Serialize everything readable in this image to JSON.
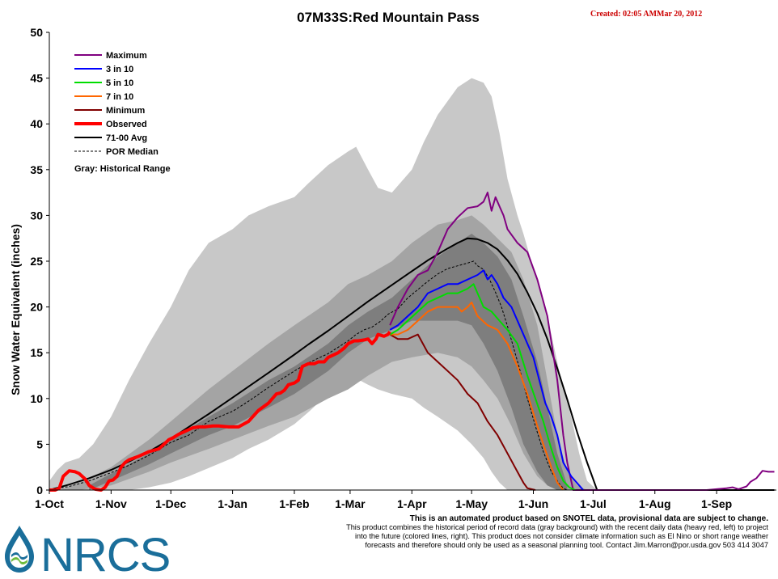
{
  "chart_data": {
    "type": "area",
    "title": "07M33S:Red Mountain Pass",
    "created_text": "Created: 02:05 AMMar 20, 2012",
    "ylabel": "Snow Water Equivalent (inches)",
    "xlabel": "",
    "ylim": [
      0,
      50
    ],
    "y_ticks": [
      "0",
      "5",
      "10",
      "15",
      "20",
      "25",
      "30",
      "35",
      "40",
      "45",
      "50"
    ],
    "x_ticks": [
      "1-Oct",
      "1-Nov",
      "1-Dec",
      "1-Jan",
      "1-Feb",
      "1-Mar",
      "1-Apr",
      "1-May",
      "1-Jun",
      "1-Jul",
      "1-Aug",
      "1-Sep"
    ],
    "x_unit": "day of water year (0 = 1-Oct)",
    "grid": false,
    "legend_position": "top-left",
    "legend": [
      {
        "label": "Maximum",
        "color": "#800080",
        "style": "solid"
      },
      {
        "label": "3 in 10",
        "color": "#0000ff",
        "style": "solid"
      },
      {
        "label": "5 in 10",
        "color": "#00dd00",
        "style": "solid"
      },
      {
        "label": "7 in 10",
        "color": "#ff6600",
        "style": "solid"
      },
      {
        "label": "Minimum",
        "color": "#800000",
        "style": "solid"
      },
      {
        "label": "Observed",
        "color": "#ff0000",
        "style": "thick"
      },
      {
        "label": "71-00 Avg",
        "color": "#000000",
        "style": "solid"
      },
      {
        "label": "POR Median",
        "color": "#000000",
        "style": "dashed"
      }
    ],
    "legend_note": "Gray: Historical Range",
    "colors": {
      "range_outer": "#c8c8c8",
      "range_mid": "#a4a4a4",
      "range_inner": "#7e7e7e"
    },
    "bands": {
      "outer": {
        "x": [
          0,
          4,
          8,
          15,
          22,
          31,
          40,
          50,
          61,
          70,
          80,
          92,
          100,
          110,
          123,
          130,
          140,
          150,
          154,
          160,
          165,
          172,
          182,
          188,
          195,
          205,
          212,
          218,
          222,
          226,
          230,
          235,
          238,
          242,
          246,
          252,
          256,
          262,
          266,
          270,
          275,
          280,
          285,
          290,
          295,
          300,
          350,
          364
        ],
        "upper": [
          1,
          2.2,
          3.0,
          3.5,
          5,
          8,
          12,
          16,
          20,
          24,
          27,
          28.5,
          30,
          31,
          32,
          33.5,
          35.5,
          37,
          37.5,
          35,
          33,
          32.5,
          35,
          38,
          41,
          44,
          45,
          44.5,
          43,
          39,
          34,
          30,
          28,
          25,
          22,
          17,
          13,
          8,
          4,
          1,
          0,
          0,
          0,
          0,
          0,
          0,
          0,
          0
        ],
        "lower": [
          0,
          0,
          0,
          0,
          0,
          0,
          0,
          0.3,
          0.8,
          1.5,
          2.4,
          3.5,
          4.5,
          5.5,
          7.2,
          8.5,
          10.5,
          12.0,
          12.2,
          11.5,
          11.0,
          10.5,
          10.0,
          9.0,
          8.0,
          6.5,
          5.0,
          3.5,
          2.0,
          0.8,
          0,
          0,
          0,
          0,
          0,
          0,
          0,
          0,
          0,
          0,
          0,
          0,
          0,
          0,
          0,
          0,
          0,
          0
        ]
      },
      "mid": {
        "x": [
          5,
          15,
          31,
          50,
          61,
          80,
          92,
          110,
          123,
          140,
          150,
          160,
          172,
          182,
          195,
          205,
          212,
          218,
          225,
          232,
          238,
          245,
          250,
          255,
          260,
          265,
          270
        ],
        "upper": [
          0,
          0.8,
          2.5,
          5.5,
          7.5,
          11,
          13,
          16,
          18,
          20.5,
          22.5,
          23.5,
          25,
          27,
          29,
          29.5,
          30,
          29,
          27.5,
          26,
          23,
          18,
          12,
          6,
          2,
          0.5,
          0
        ],
        "lower": [
          0,
          0,
          0.5,
          2,
          3,
          4.5,
          5.5,
          7,
          8,
          10,
          11,
          12.5,
          14,
          14.5,
          15,
          14.5,
          13.5,
          12,
          10,
          7,
          4,
          1.5,
          0.5,
          0,
          0,
          0,
          0
        ]
      },
      "inner": {
        "x": [
          20,
          31,
          50,
          61,
          80,
          92,
          110,
          123,
          140,
          150,
          160,
          172,
          182,
          195,
          205,
          212,
          218,
          225,
          232,
          238,
          245,
          250,
          255,
          260
        ],
        "upper": [
          0.5,
          1.8,
          4,
          5.5,
          8,
          9.5,
          12,
          13.5,
          16,
          18,
          19.5,
          21,
          23,
          25.5,
          27,
          28,
          27,
          25.5,
          23,
          19,
          14,
          9,
          4,
          0.5
        ],
        "lower": [
          0,
          1,
          2.8,
          4,
          6,
          7,
          9,
          10.5,
          13,
          15,
          16.5,
          17.5,
          18.5,
          18.5,
          18.5,
          18,
          16,
          13,
          9,
          5,
          2,
          0.5,
          0,
          0
        ]
      }
    },
    "series": [
      {
        "name": "71-00 Avg",
        "color": "#000000",
        "width": 2,
        "dash": "",
        "x": [
          0,
          10,
          20,
          31,
          40,
          50,
          61,
          70,
          80,
          92,
          100,
          110,
          123,
          130,
          140,
          150,
          160,
          170,
          180,
          190,
          200,
          205,
          210,
          215,
          220,
          225,
          230,
          235,
          240,
          245,
          250,
          255,
          260,
          265,
          270,
          273,
          275,
          300,
          364
        ],
        "y": [
          0,
          0.6,
          1.3,
          2.2,
          3.1,
          4.2,
          5.6,
          6.9,
          8.3,
          10.1,
          11.3,
          12.8,
          14.8,
          15.9,
          17.4,
          19.0,
          20.6,
          22.1,
          23.6,
          25.1,
          26.4,
          27.0,
          27.5,
          27.4,
          27.0,
          26.3,
          25.1,
          23.6,
          21.6,
          19.3,
          16.5,
          13.3,
          9.9,
          6.3,
          3.0,
          1.2,
          0,
          0,
          0
        ]
      },
      {
        "name": "POR Median",
        "color": "#000000",
        "width": 1,
        "dash": "3,2",
        "x": [
          0,
          10,
          20,
          31,
          40,
          50,
          61,
          70,
          80,
          92,
          100,
          110,
          123,
          130,
          140,
          150,
          154,
          158,
          162,
          166,
          170,
          175,
          180,
          185,
          190,
          195,
          200,
          205,
          210,
          213,
          215,
          218,
          221,
          224,
          227,
          230,
          233,
          236,
          240,
          244,
          248,
          252,
          256,
          258,
          260,
          300,
          364
        ],
        "y": [
          0,
          0.4,
          1.0,
          1.9,
          2.7,
          3.8,
          5.2,
          6.0,
          7.5,
          8.6,
          9.7,
          11.2,
          13.0,
          13.9,
          14.9,
          16.3,
          17.0,
          17.5,
          17.8,
          18.4,
          19.2,
          19.8,
          21.0,
          21.9,
          22.8,
          23.6,
          24.2,
          24.5,
          24.8,
          25.0,
          24.5,
          24.1,
          23.0,
          21.6,
          20.0,
          17.9,
          15.6,
          13.3,
          10.0,
          7.0,
          4.2,
          2.0,
          0.7,
          0.2,
          0,
          0,
          0
        ]
      },
      {
        "name": "Maximum",
        "color": "#800080",
        "width": 2,
        "dash": "",
        "x": [
          171,
          175,
          180,
          185,
          190,
          195,
          200,
          205,
          210,
          215,
          218,
          220,
          222,
          224,
          226,
          228,
          230,
          235,
          240,
          245,
          250,
          255,
          258,
          260,
          262,
          263,
          270,
          300,
          320,
          330,
          335,
          340,
          343,
          346,
          350,
          352,
          355,
          358,
          361,
          364
        ],
        "y": [
          18.0,
          20.0,
          22.0,
          23.5,
          24.0,
          26.0,
          28.5,
          29.8,
          30.8,
          31.0,
          31.5,
          32.5,
          30.5,
          32.0,
          31.0,
          30.0,
          28.5,
          27.0,
          26.0,
          23.0,
          19.0,
          12.0,
          6.0,
          3.0,
          1.0,
          0,
          0,
          0,
          0,
          0,
          0.1,
          0.2,
          0.3,
          0.1,
          0.4,
          0.9,
          1.3,
          2.1,
          2.0,
          2.0
        ]
      },
      {
        "name": "3 in 10",
        "color": "#0000ff",
        "width": 2,
        "dash": "",
        "x": [
          171,
          175,
          180,
          185,
          190,
          195,
          200,
          205,
          210,
          215,
          218,
          220,
          222,
          225,
          228,
          232,
          236,
          240,
          243,
          246,
          249,
          252,
          255,
          258,
          262,
          266,
          268
        ],
        "y": [
          17.5,
          18.0,
          19.0,
          20.0,
          21.5,
          22.0,
          22.5,
          22.5,
          23.0,
          23.5,
          24.0,
          23.0,
          23.5,
          22.5,
          21.0,
          20.0,
          18.0,
          16.0,
          14.5,
          12.0,
          9.5,
          8.0,
          6.0,
          3.0,
          1.5,
          0.5,
          0
        ]
      },
      {
        "name": "5 in 10",
        "color": "#00dd00",
        "width": 2,
        "dash": "",
        "x": [
          171,
          175,
          180,
          185,
          190,
          195,
          200,
          205,
          210,
          213,
          215,
          218,
          222,
          226,
          230,
          235,
          240,
          244,
          248,
          252,
          255,
          258,
          261,
          264
        ],
        "y": [
          17.0,
          17.5,
          18.5,
          19.5,
          20.5,
          21.0,
          21.5,
          21.5,
          22.0,
          22.5,
          21.5,
          20.0,
          19.5,
          18.5,
          17.5,
          16.0,
          12.5,
          10.0,
          7.5,
          4.5,
          2.5,
          1.0,
          0.3,
          0
        ]
      },
      {
        "name": "7 in 10",
        "color": "#ff6600",
        "width": 2,
        "dash": "",
        "x": [
          171,
          175,
          180,
          185,
          190,
          195,
          200,
          205,
          207,
          210,
          212,
          215,
          220,
          225,
          230,
          235,
          240,
          245,
          248,
          252,
          255,
          258
        ],
        "y": [
          17.0,
          17.0,
          17.5,
          18.5,
          19.5,
          20.0,
          20.0,
          20.0,
          19.5,
          20.0,
          20.5,
          19.0,
          18.0,
          17.5,
          16.0,
          13.5,
          10.5,
          7.0,
          5.0,
          2.5,
          0.8,
          0
        ]
      },
      {
        "name": "Minimum",
        "color": "#800000",
        "width": 2,
        "dash": "",
        "x": [
          171,
          175,
          180,
          185,
          190,
          195,
          200,
          205,
          210,
          215,
          220,
          225,
          230,
          235,
          238,
          240,
          244
        ],
        "y": [
          17.0,
          16.5,
          16.5,
          17.0,
          15.0,
          14.0,
          13.0,
          12.0,
          10.5,
          9.5,
          7.5,
          6.0,
          4.0,
          2.0,
          0.8,
          0.2,
          0
        ]
      },
      {
        "name": "Observed",
        "color": "#ff0000",
        "width": 4,
        "dash": "",
        "x": [
          0,
          3,
          5,
          7,
          10,
          13,
          15,
          18,
          20,
          23,
          26,
          28,
          30,
          32,
          34,
          36,
          38,
          40,
          45,
          50,
          55,
          60,
          62,
          65,
          68,
          70,
          72,
          75,
          78,
          82,
          85,
          90,
          95,
          100,
          105,
          110,
          114,
          116,
          118,
          120,
          123,
          125,
          127,
          130,
          133,
          135,
          138,
          140,
          143,
          145,
          148,
          150,
          153,
          155,
          158,
          160,
          162,
          164,
          165,
          168,
          170,
          171
        ],
        "y": [
          0,
          0,
          0.2,
          1.5,
          2.1,
          2.0,
          1.8,
          1.2,
          0.5,
          0.1,
          0,
          0.3,
          1.0,
          1.1,
          1.5,
          2.5,
          3.0,
          3.3,
          3.7,
          4.2,
          4.5,
          5.5,
          5.7,
          6.1,
          6.4,
          6.6,
          6.8,
          6.9,
          6.9,
          7.0,
          7.0,
          6.9,
          6.9,
          7.5,
          8.7,
          9.5,
          10.5,
          10.6,
          10.9,
          11.5,
          11.7,
          12.0,
          13.5,
          13.8,
          13.8,
          14.0,
          14.0,
          14.5,
          14.8,
          15.0,
          15.5,
          16.0,
          16.3,
          16.3,
          16.4,
          16.5,
          16.0,
          16.5,
          17.0,
          16.8,
          17.0,
          17.3
        ]
      }
    ]
  },
  "footer": {
    "disclaimer_line1": "This is an automated product based on SNOTEL data, provisional data are subject to change.",
    "disclaimer_line2": "This product combines the historical period of record data (gray background) with the recent daily data (heavy red, left) to project",
    "disclaimer_line3": "into the future (colored lines, right). This product does not consider climate information such as El Nino or short range weather",
    "disclaimer_line4": "forecasts and therefore should only be used as a seasonal planning tool. Contact Jim.Marron@por.usda.gov 503 414 3047",
    "logo_text": "NRCS"
  }
}
